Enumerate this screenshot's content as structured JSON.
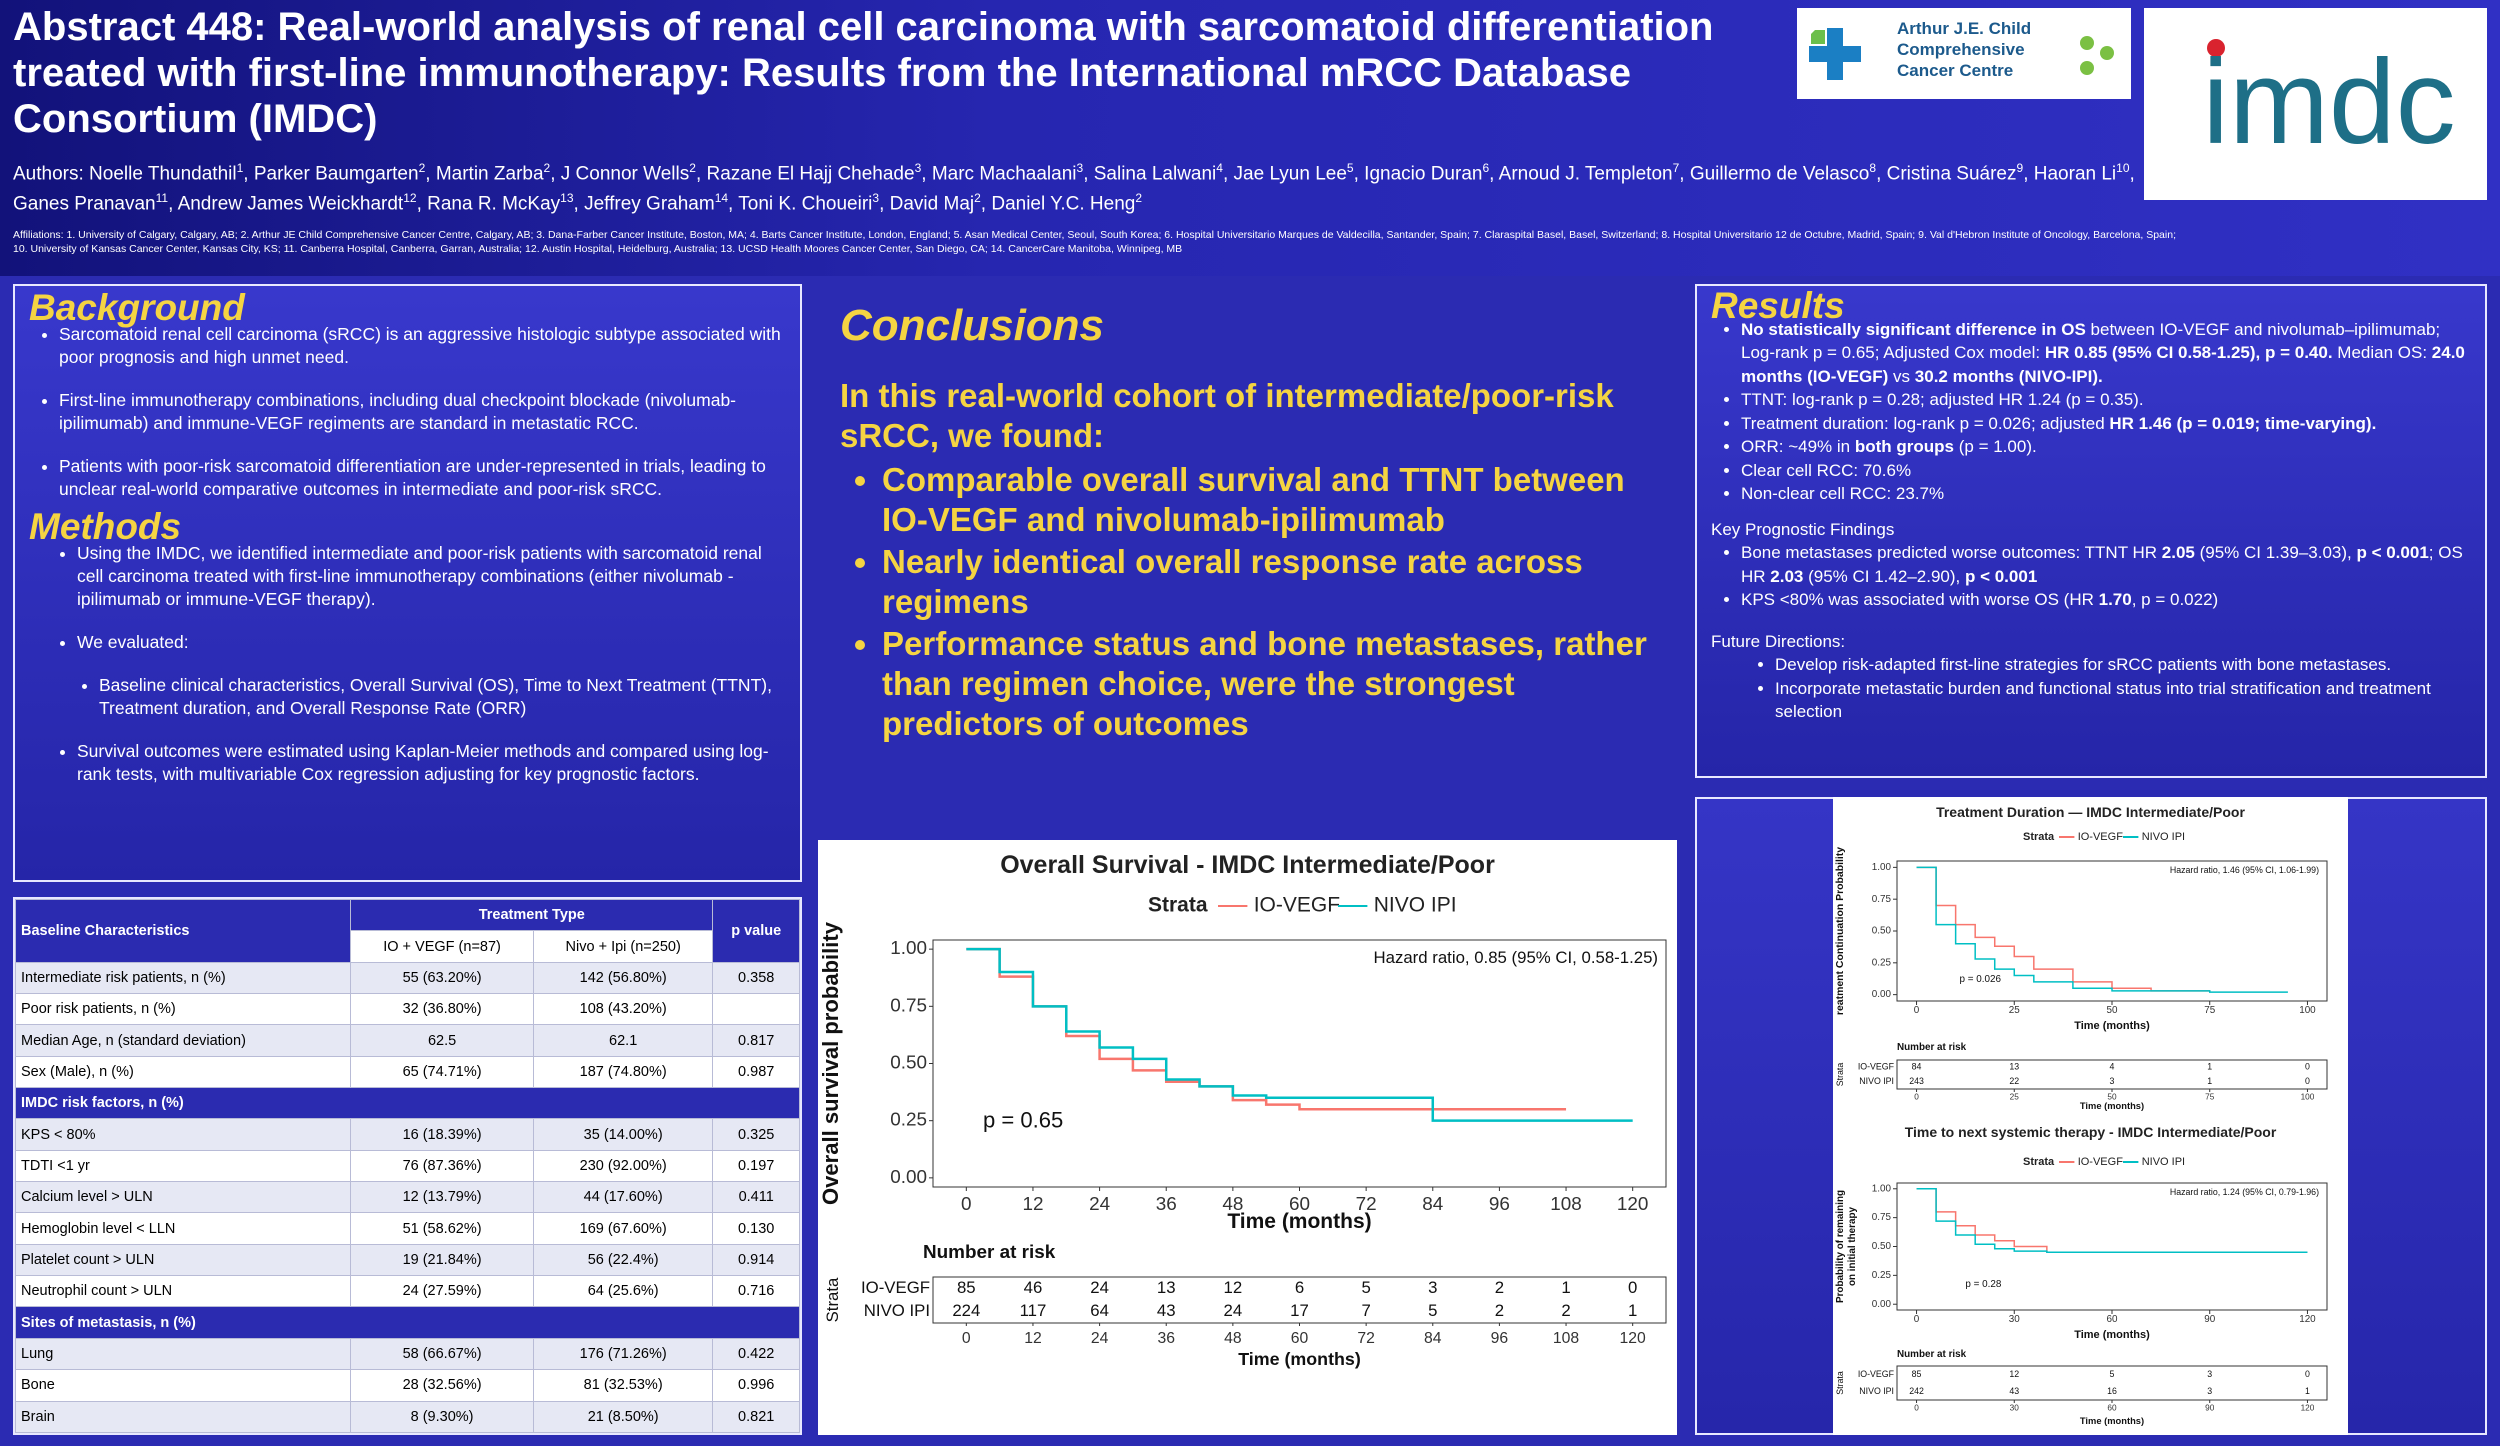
{
  "header": {
    "title": "Abstract 448: Real-world analysis of renal cell carcinoma with sarcomatoid differentiation treated with first-line immunotherapy: Results from the International mRCC Database Consortium (IMDC)",
    "authors_label": "Authors: ",
    "authors": [
      {
        "name": "Noelle Thundathil",
        "aff": "1"
      },
      {
        "name": ", Parker Baumgarten",
        "aff": "2"
      },
      {
        "name": ", Martin Zarba",
        "aff": "2"
      },
      {
        "name": ", J Connor Wells",
        "aff": "2"
      },
      {
        "name": ", Razane El Hajj Chehade",
        "aff": "3"
      },
      {
        "name": ", Marc Machaalani",
        "aff": "3"
      },
      {
        "name": ", Salina Lalwani",
        "aff": "4"
      },
      {
        "name": ", Jae Lyun Lee",
        "aff": "5"
      },
      {
        "name": ", Ignacio Duran",
        "aff": "6"
      },
      {
        "name": ", Arnoud J. Templeton",
        "aff": "7"
      },
      {
        "name": ", Guillermo de Velasco",
        "aff": "8"
      },
      {
        "name": ", Cristina Suárez",
        "aff": "9"
      },
      {
        "name": ", Haoran Li",
        "aff": "10"
      },
      {
        "name": ", Ganes Pranavan",
        "aff": "11"
      },
      {
        "name": ", Andrew James Weickhardt",
        "aff": "12"
      },
      {
        "name": ", Rana R. McKay",
        "aff": "13"
      },
      {
        "name": ", Jeffrey Graham",
        "aff": "14"
      },
      {
        "name": ", Toni K. Choueiri",
        "aff": "3"
      },
      {
        "name": ", David Maj",
        "aff": "2"
      },
      {
        "name": ", Daniel Y.C. Heng",
        "aff": "2"
      }
    ],
    "affiliations": "Affiliations: 1. University of Calgary, Calgary, AB; 2. Arthur JE Child Comprehensive Cancer Centre, Calgary, AB; 3. Dana-Farber Cancer Institute, Boston, MA; 4. Barts Cancer Institute, London, England; 5. Asan Medical Center, Seoul, South Korea; 6. Hospital Universitario Marques de Valdecilla, Santander, Spain; 7. Claraspital Basel, Basel, Switzerland; 8. Hospital Universitario 12 de Octubre, Madrid, Spain; 9. Val d'Hebron Institute of Oncology, Barcelona, Spain; 10. University of Kansas Cancer Center, Kansas City, KS; 11. Canberra Hospital, Canberra, Garran, Australia; 12. Austin Hospital, Heidelburg, Australia; 13. UCSD Health Moores Cancer Center, San Diego, CA; 14. CancerCare Manitoba, Winnipeg, MB",
    "logo_left": [
      "Arthur J.E. Child",
      "Comprehensive",
      "Cancer Centre"
    ],
    "logo_right": "imdc"
  },
  "background": {
    "title": "Background",
    "bullets": [
      "Sarcomatoid renal cell carcinoma (sRCC) is an aggressive histologic subtype associated with poor prognosis and high unmet need.",
      "First-line immunotherapy combinations, including dual checkpoint blockade (nivolumab-ipilimumab) and immune-VEGF regiments are standard in metastatic RCC.",
      "Patients with poor-risk sarcomatoid differentiation are under-represented in trials, leading to unclear real-world comparative outcomes in intermediate and poor-risk sRCC."
    ]
  },
  "methods": {
    "title": "Methods",
    "items": [
      {
        "t": "Using the IMDC, we identified intermediate and poor-risk patients with sarcomatoid renal cell carcinoma treated with first-line immunotherapy combinations (either nivolumab - ipilimumab or immune-VEGF therapy).",
        "level": 1
      },
      {
        "t": "We evaluated:",
        "level": 1
      },
      {
        "t": "Baseline clinical characteristics, Overall Survival (OS), Time to Next Treatment (TTNT), Treatment duration, and Overall Response Rate (ORR)",
        "level": 2
      },
      {
        "t": "Survival outcomes were estimated using Kaplan-Meier methods and compared using log-rank tests, with multivariable Cox regression adjusting for key prognostic factors.",
        "level": 1
      }
    ]
  },
  "conclusions": {
    "title": "Conclusions",
    "intro": "In this real-world cohort of intermediate/poor-risk sRCC, we found:",
    "bullets": [
      "Comparable overall survival and TTNT between IO-VEGF and nivolumab-ipilimumab",
      "Nearly identical overall response rate across regimens",
      "Performance status and bone metastases, rather than regimen choice, were the strongest predictors of outcomes"
    ]
  },
  "results": {
    "title": "Results",
    "bullets": [
      [
        {
          "t": "No statistically significant difference in OS",
          "b": true
        },
        {
          "t": " between IO-VEGF and nivolumab–ipilimumab; Log-rank p = 0.65; Adjusted Cox model: "
        },
        {
          "t": "HR 0.85 (95% CI 0.58-1.25), p = 0.40.",
          "b": true
        },
        {
          "t": " Median OS: "
        },
        {
          "t": "24.0 months (IO-VEGF)",
          "b": true
        },
        {
          "t": " vs "
        },
        {
          "t": "30.2 months (NIVO-IPI).",
          "b": true
        }
      ],
      [
        {
          "t": "TTNT: log-rank p = 0.28; adjusted HR 1.24 (p = 0.35)."
        }
      ],
      [
        {
          "t": "Treatment duration: log-rank p = 0.026; adjusted "
        },
        {
          "t": "HR 1.46 (p = 0.019; time-varying).",
          "b": true
        }
      ],
      [
        {
          "t": "ORR: ~49% in "
        },
        {
          "t": "both groups",
          "b": true
        },
        {
          "t": " (p = 1.00)."
        }
      ],
      [
        {
          "t": "Clear cell RCC: 70.6%"
        }
      ],
      [
        {
          "t": "Non-clear cell RCC: 23.7%"
        }
      ]
    ],
    "prognostic_title": "Key Prognostic Findings",
    "prognostic_bullets": [
      [
        {
          "t": "Bone metastases predicted worse outcomes: TTNT HR "
        },
        {
          "t": "2.05",
          "b": true
        },
        {
          "t": " (95% CI 1.39–3.03), "
        },
        {
          "t": "p < 0.001",
          "b": true
        },
        {
          "t": "; OS HR "
        },
        {
          "t": "2.03",
          "b": true
        },
        {
          "t": " (95% CI 1.42–2.90), "
        },
        {
          "t": "p < 0.001",
          "b": true
        }
      ],
      [
        {
          "t": "KPS <80% was associated with worse OS (HR "
        },
        {
          "t": "1.70",
          "b": true
        },
        {
          "t": ", p = 0.022)"
        }
      ]
    ],
    "future_title": "Future Directions:",
    "future_bullets": [
      "Develop risk-adapted first-line strategies for sRCC patients with bone metastases.",
      "Incorporate metastatic burden and functional status into trial stratification and treatment selection"
    ]
  },
  "table": {
    "header": [
      "Baseline Characteristics",
      "Treatment Type",
      "p value"
    ],
    "subheader": [
      "IO + VEGF (n=87)",
      "Nivo + Ipi (n=250)"
    ],
    "rows": [
      [
        "Intermediate risk patients, n (%)",
        "55 (63.20%)",
        "142 (56.80%)",
        "0.358"
      ],
      [
        "Poor risk patients, n (%)",
        "32 (36.80%)",
        "108 (43.20%)"
      ],
      [
        "Median Age, n (standard deviation)",
        "62.5",
        "62.1",
        "0.817"
      ],
      [
        "Sex (Male), n (%)",
        "65 (74.71%)",
        "187 (74.80%)",
        "0.987"
      ],
      [
        "IMDC risk factors, n (%)"
      ],
      [
        "KPS < 80%",
        "16 (18.39%)",
        "35 (14.00%)",
        "0.325"
      ],
      [
        "TDTI <1 yr",
        "76 (87.36%)",
        "230 (92.00%)",
        "0.197"
      ],
      [
        "Calcium level > ULN",
        "12 (13.79%)",
        "44 (17.60%)",
        "0.411"
      ],
      [
        "Hemoglobin level < LLN",
        "51 (58.62%)",
        "169 (67.60%)",
        "0.130"
      ],
      [
        "Platelet count > ULN",
        "19 (21.84%)",
        "56 (22.4%)",
        "0.914"
      ],
      [
        "Neutrophil count > ULN",
        "24 (27.59%)",
        "64 (25.6%)",
        "0.716"
      ],
      [
        "Sites of metastasis, n (%)"
      ],
      [
        "Lung",
        "58 (66.67%)",
        "176 (71.26%)",
        "0.422"
      ],
      [
        "Bone",
        "28 (32.56%)",
        "81 (32.53%)",
        "0.996"
      ],
      [
        "Brain",
        "8 (9.30%)",
        "21 (8.50%)",
        "0.821"
      ]
    ]
  },
  "chart_data": [
    {
      "type": "line",
      "title": "Overall Survival - IMDC Intermediate/Poor",
      "legend_title": "Strata",
      "xlabel": "Time (months)",
      "ylabel": [
        "Overall survival probability"
      ],
      "xlim": [
        -6,
        126
      ],
      "ylim": [
        -0.04,
        1.04
      ],
      "xticks": [
        0,
        12,
        24,
        36,
        48,
        60,
        72,
        84,
        96,
        108,
        120
      ],
      "yticks": [
        {
          "value": 0,
          "label": "0.00"
        },
        {
          "value": 0.25,
          "label": "0.25"
        },
        {
          "value": 0.5,
          "label": "0.50"
        },
        {
          "value": 0.75,
          "label": "0.75"
        },
        {
          "value": 1,
          "label": "1.00"
        }
      ],
      "series": [
        {
          "name": "IO-VEGF",
          "color": "#f8766d",
          "x": [
            0,
            6,
            12,
            18,
            24,
            30,
            36,
            42,
            48,
            54,
            60,
            72,
            84,
            96,
            108
          ],
          "values": [
            1,
            0.88,
            0.75,
            0.62,
            0.52,
            0.47,
            0.42,
            0.4,
            0.34,
            0.32,
            0.3,
            0.3,
            0.3,
            0.3,
            0.3
          ]
        },
        {
          "name": "NIVO IPI",
          "color": "#00bfc4",
          "x": [
            0,
            6,
            12,
            18,
            24,
            30,
            36,
            42,
            48,
            54,
            60,
            72,
            84,
            96,
            108,
            120
          ],
          "values": [
            1,
            0.9,
            0.75,
            0.64,
            0.57,
            0.52,
            0.43,
            0.4,
            0.36,
            0.35,
            0.35,
            0.35,
            0.25,
            0.25,
            0.25,
            0.25
          ]
        }
      ],
      "annotations": {
        "hr": "Hazard ratio, 0.85 (95% CI, 0.58-1.25)",
        "p": "p = 0.65"
      },
      "risk": {
        "title": "Number at risk",
        "strata_label": "Strata",
        "xticks": [
          0,
          12,
          24,
          36,
          48,
          60,
          72,
          84,
          96,
          108,
          120
        ],
        "xlabel": "Time (months)",
        "rows": [
          {
            "name": "IO-VEGF",
            "counts": [
              85,
              46,
              24,
              13,
              12,
              6,
              5,
              3,
              2,
              1,
              0
            ]
          },
          {
            "name": "NIVO IPI",
            "counts": [
              224,
              117,
              64,
              43,
              24,
              17,
              7,
              5,
              2,
              2,
              1
            ]
          }
        ]
      }
    },
    {
      "type": "line",
      "title": "Treatment Duration — IMDC Intermediate/Poor",
      "legend_title": "Strata",
      "xlabel": "Time (months)",
      "ylabel": [
        "reatment Continuation Probability"
      ],
      "xlim": [
        -5,
        105
      ],
      "ylim": [
        -0.05,
        1.05
      ],
      "xticks": [
        0,
        25,
        50,
        75,
        100
      ],
      "yticks": [
        {
          "value": 0,
          "label": "0.00"
        },
        {
          "value": 0.25,
          "label": "0.25"
        },
        {
          "value": 0.5,
          "label": "0.50"
        },
        {
          "value": 0.75,
          "label": "0.75"
        },
        {
          "value": 1,
          "label": "1.00"
        }
      ],
      "series": [
        {
          "name": "IO-VEGF",
          "color": "#f8766d",
          "x": [
            0,
            5,
            10,
            15,
            20,
            25,
            30,
            40,
            50,
            60,
            75
          ],
          "values": [
            1,
            0.7,
            0.55,
            0.45,
            0.38,
            0.3,
            0.2,
            0.1,
            0.05,
            0.03,
            0.02
          ]
        },
        {
          "name": "NIVO IPI",
          "color": "#00bfc4",
          "x": [
            0,
            5,
            10,
            15,
            20,
            25,
            30,
            40,
            50,
            75,
            95
          ],
          "values": [
            1,
            0.55,
            0.4,
            0.28,
            0.2,
            0.15,
            0.1,
            0.05,
            0.03,
            0.02,
            0.02
          ]
        }
      ],
      "annotations": {
        "hr": "Hazard ratio, 1.46 (95% CI, 1.06-1.99)",
        "p": "p = 0.026"
      },
      "risk": {
        "title": "Number at risk",
        "strata_label": "Strata",
        "xticks": [
          0,
          25,
          50,
          75,
          100
        ],
        "xlabel": "Time (months)",
        "rows": [
          {
            "name": "IO-VEGF",
            "counts": [
              84,
              13,
              4,
              1,
              0
            ]
          },
          {
            "name": "NIVO IPI",
            "counts": [
              243,
              22,
              3,
              1,
              0
            ]
          }
        ]
      }
    },
    {
      "type": "line",
      "title": "Time to next systemic therapy - IMDC Intermediate/Poor",
      "legend_title": "Strata",
      "xlabel": "Time (months)",
      "ylabel": [
        "Probability of remaining",
        "on initial therapy"
      ],
      "xlim": [
        -6,
        126
      ],
      "ylim": [
        -0.05,
        1.05
      ],
      "xticks": [
        0,
        30,
        60,
        90,
        120
      ],
      "yticks": [
        {
          "value": 0,
          "label": "0.00"
        },
        {
          "value": 0.25,
          "label": "0.25"
        },
        {
          "value": 0.5,
          "label": "0.50"
        },
        {
          "value": 0.75,
          "label": "0.75"
        },
        {
          "value": 1,
          "label": "1.00"
        }
      ],
      "series": [
        {
          "name": "IO-VEGF",
          "color": "#f8766d",
          "x": [
            0,
            6,
            12,
            18,
            24,
            30,
            40,
            60,
            90,
            120
          ],
          "values": [
            1,
            0.8,
            0.68,
            0.6,
            0.55,
            0.5,
            0.45,
            0.45,
            0.45,
            0.45
          ]
        },
        {
          "name": "NIVO IPI",
          "color": "#00bfc4",
          "x": [
            0,
            6,
            12,
            18,
            24,
            30,
            40,
            60,
            120
          ],
          "values": [
            1,
            0.72,
            0.6,
            0.52,
            0.48,
            0.46,
            0.45,
            0.45,
            0.45
          ]
        }
      ],
      "annotations": {
        "hr": "Hazard ratio, 1.24 (95% CI, 0.79-1.96)",
        "p": "p = 0.28"
      },
      "risk": {
        "title": "Number at risk",
        "strata_label": "Strata",
        "xticks": [
          0,
          30,
          60,
          90,
          120
        ],
        "xlabel": "Time (months)",
        "rows": [
          {
            "name": "IO-VEGF",
            "counts": [
              85,
              12,
              5,
              3,
              0
            ]
          },
          {
            "name": "NIVO IPI",
            "counts": [
              242,
              43,
              16,
              3,
              1
            ]
          }
        ]
      }
    }
  ]
}
